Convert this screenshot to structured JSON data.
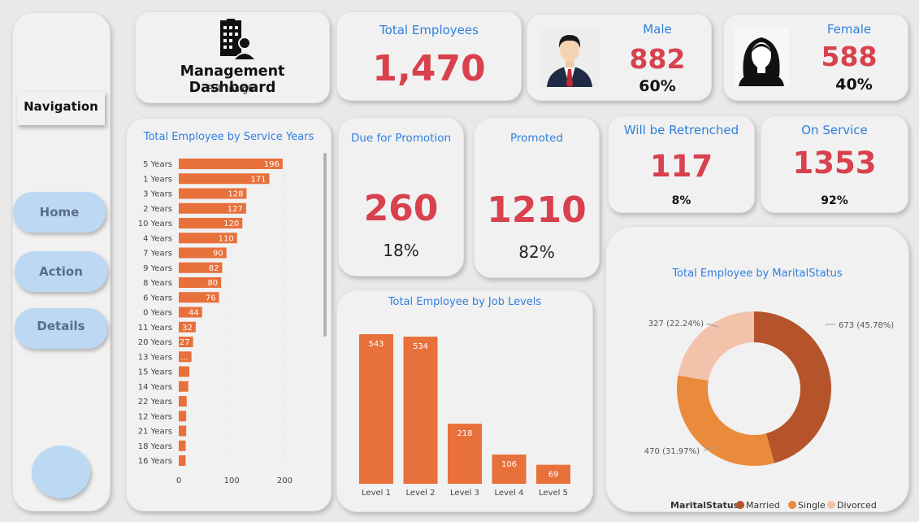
{
  "nav": {
    "label": "Navigation",
    "home": "Home",
    "action": "Action",
    "details": "Details"
  },
  "header": {
    "title": "Management Dashboard",
    "subtitle": "Full Insight",
    "logo_icon": "building-person-icon"
  },
  "kpis": {
    "total_employees": {
      "label": "Total Employees",
      "value": "1,470"
    },
    "male": {
      "label": "Male",
      "value": "882",
      "pct": "60%",
      "icon": "male-avatar-icon"
    },
    "female": {
      "label": "Female",
      "value": "588",
      "pct": "40%",
      "icon": "female-avatar-icon"
    },
    "due_promotion": {
      "label": "Due for Promotion",
      "value": "260",
      "pct": "18%"
    },
    "promoted": {
      "label": "Promoted",
      "value": "1210",
      "pct": "82%"
    },
    "retrenched": {
      "label": "Will be Retrenched",
      "value": "117",
      "pct": "8%"
    },
    "on_service": {
      "label": "On Service",
      "value": "1353",
      "pct": "92%"
    }
  },
  "colors": {
    "accent_blue": "#2f7fe0",
    "kpi_red": "#d8414d",
    "bar_orange": "#e8703a",
    "married": "#b5532b",
    "single": "#e98b3a",
    "divorced": "#f2c2aa",
    "nav_button": "#bcd8f3"
  },
  "chart_data": [
    {
      "type": "bar",
      "orientation": "horizontal",
      "title": "Total Employee by Service Years",
      "categories": [
        "5 Years",
        "1 Years",
        "3 Years",
        "2 Years",
        "10 Years",
        "4 Years",
        "7 Years",
        "9 Years",
        "8 Years",
        "6 Years",
        "0 Years",
        "11 Years",
        "20 Years",
        "13 Years",
        "15 Years",
        "14 Years",
        "22 Years",
        "12 Years",
        "21 Years",
        "18 Years",
        "16 Years"
      ],
      "values": [
        196,
        171,
        128,
        127,
        120,
        110,
        90,
        82,
        80,
        76,
        44,
        32,
        27,
        24,
        20,
        18,
        15,
        14,
        14,
        13,
        13
      ],
      "data_labels": [
        "196",
        "171",
        "128",
        "127",
        "120",
        "110",
        "90",
        "82",
        "80",
        "76",
        "44",
        "32",
        "27",
        "...",
        "",
        "",
        "",
        "",
        "",
        "",
        ""
      ],
      "xticks": [
        "0",
        "100",
        "200"
      ],
      "xlim": [
        0,
        230
      ]
    },
    {
      "type": "bar",
      "title": "Total Employee by Job Levels",
      "categories": [
        "Level 1",
        "Level 2",
        "Level 3",
        "Level 4",
        "Level 5"
      ],
      "values": [
        543,
        534,
        218,
        106,
        69
      ],
      "ylim": [
        0,
        543
      ]
    },
    {
      "type": "pie",
      "donut": true,
      "title": "Total Employee by MaritalStatus",
      "legend_title": "MaritalStatus",
      "legend_position": "bottom",
      "labels": [
        "Married",
        "Single",
        "Divorced"
      ],
      "values": [
        673,
        470,
        327
      ],
      "data_labels": [
        "673 (45.78%)",
        "470 (31.97%)",
        "327 (22.24%)"
      ]
    }
  ]
}
